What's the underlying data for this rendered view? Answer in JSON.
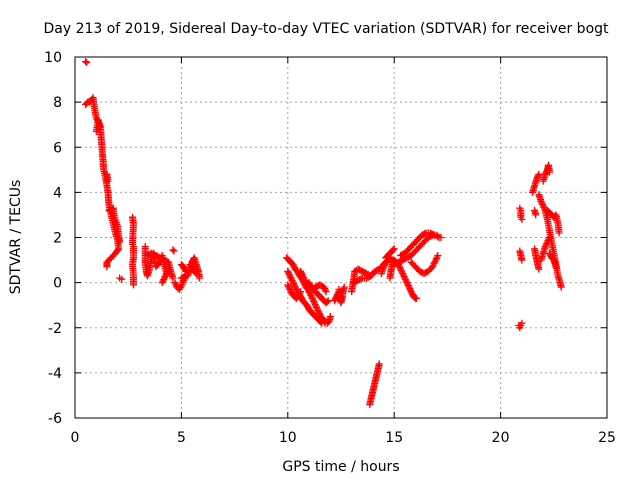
{
  "chart_data": {
    "type": "scatter",
    "title": "Day 213 of 2019, Sidereal Day-to-day VTEC variation (SDTVAR) for receiver bogt",
    "xlabel": "GPS time / hours",
    "ylabel": "SDTVAR / TECUs",
    "xlim": [
      0,
      25
    ],
    "ylim": [
      -6,
      10
    ],
    "xticks": [
      0,
      5,
      10,
      15,
      20,
      25
    ],
    "yticks": [
      -6,
      -4,
      -2,
      0,
      2,
      4,
      6,
      8,
      10
    ],
    "grid": true,
    "marker": "+",
    "color": "#ff0000",
    "segments": [
      [
        [
          0.5,
          9.8
        ],
        [
          0.55,
          9.75
        ]
      ],
      [
        [
          0.5,
          7.9
        ],
        [
          0.6,
          8.0
        ],
        [
          0.75,
          8.05
        ],
        [
          0.85,
          8.2
        ],
        [
          0.9,
          7.8
        ],
        [
          1.0,
          7.3
        ],
        [
          1.1,
          7.1
        ],
        [
          1.2,
          6.8
        ],
        [
          1.25,
          6.2
        ],
        [
          1.3,
          5.6
        ],
        [
          1.35,
          5.0
        ],
        [
          1.45,
          4.6
        ],
        [
          1.55,
          4.0
        ],
        [
          1.6,
          3.4
        ],
        [
          1.7,
          3.0
        ],
        [
          1.8,
          2.6
        ],
        [
          1.9,
          2.2
        ],
        [
          2.0,
          1.9
        ],
        [
          2.05,
          1.5
        ],
        [
          1.9,
          1.3
        ],
        [
          1.7,
          1.1
        ],
        [
          1.5,
          0.9
        ],
        [
          1.5,
          0.7
        ]
      ],
      [
        [
          1.0,
          6.7
        ],
        [
          1.1,
          7.2
        ],
        [
          1.2,
          6.9
        ]
      ],
      [
        [
          1.5,
          4.8
        ],
        [
          1.55,
          4.5
        ]
      ],
      [
        [
          1.6,
          3.2
        ],
        [
          1.8,
          3.3
        ],
        [
          1.85,
          2.9
        ],
        [
          2.0,
          2.5
        ],
        [
          2.05,
          2.1
        ],
        [
          2.1,
          1.8
        ]
      ],
      [
        [
          2.1,
          0.2
        ],
        [
          2.2,
          0.15
        ]
      ],
      [
        [
          2.7,
          2.9
        ],
        [
          2.75,
          2.6
        ],
        [
          2.7,
          1.7
        ],
        [
          2.75,
          1.6
        ],
        [
          2.75,
          1.1
        ],
        [
          2.7,
          0.8
        ],
        [
          2.75,
          0.3
        ],
        [
          2.75,
          -0.1
        ]
      ],
      [
        [
          3.3,
          1.6
        ],
        [
          3.3,
          0.9
        ],
        [
          3.35,
          0.5
        ],
        [
          3.4,
          0.3
        ],
        [
          3.5,
          0.6
        ],
        [
          3.6,
          1.1
        ],
        [
          3.7,
          1.3
        ],
        [
          3.8,
          0.7
        ],
        [
          4.0,
          0.9
        ],
        [
          4.1,
          1.2
        ],
        [
          4.2,
          0.8
        ],
        [
          4.3,
          0.4
        ],
        [
          4.4,
          0.6
        ],
        [
          4.2,
          0.2
        ],
        [
          4.1,
          0.0
        ]
      ],
      [
        [
          3.4,
          1.2
        ],
        [
          3.6,
          1.3
        ],
        [
          3.8,
          1.2
        ],
        [
          4.0,
          1.1
        ],
        [
          4.2,
          1.0
        ],
        [
          4.4,
          0.9
        ],
        [
          4.5,
          0.5
        ],
        [
          4.6,
          0.2
        ]
      ],
      [
        [
          4.6,
          1.45
        ],
        [
          4.65,
          1.4
        ]
      ],
      [
        [
          4.7,
          0.0
        ],
        [
          4.8,
          -0.2
        ],
        [
          4.9,
          -0.3
        ],
        [
          5.0,
          -0.15
        ],
        [
          5.1,
          0.1
        ],
        [
          5.2,
          0.3
        ],
        [
          5.0,
          0.2
        ]
      ],
      [
        [
          5.0,
          0.8
        ],
        [
          5.1,
          0.7
        ],
        [
          5.2,
          0.5
        ]
      ],
      [
        [
          5.3,
          0.3
        ],
        [
          5.4,
          0.6
        ],
        [
          5.5,
          0.9
        ],
        [
          5.6,
          1.1
        ],
        [
          5.7,
          0.8
        ],
        [
          5.8,
          0.5
        ],
        [
          5.85,
          0.2
        ]
      ],
      [
        [
          5.4,
          0.8
        ],
        [
          5.5,
          0.7
        ],
        [
          5.6,
          0.5
        ],
        [
          5.7,
          0.4
        ]
      ],
      [
        [
          9.95,
          1.1
        ],
        [
          10.05,
          1.0
        ],
        [
          10.15,
          0.9
        ],
        [
          10.25,
          0.8
        ],
        [
          10.35,
          0.6
        ],
        [
          10.45,
          0.5
        ],
        [
          10.55,
          0.3
        ],
        [
          10.65,
          0.2
        ],
        [
          10.75,
          0.0
        ],
        [
          10.85,
          -0.2
        ],
        [
          10.95,
          -0.3
        ],
        [
          11.05,
          -0.5
        ],
        [
          11.15,
          -0.7
        ],
        [
          11.25,
          -0.9
        ],
        [
          11.35,
          -1.1
        ],
        [
          11.45,
          -1.3
        ],
        [
          11.55,
          -1.5
        ],
        [
          11.65,
          -1.6
        ],
        [
          11.75,
          -1.8
        ],
        [
          11.85,
          -1.8
        ],
        [
          11.95,
          -1.7
        ],
        [
          12.0,
          -1.5
        ]
      ],
      [
        [
          10.0,
          0.5
        ],
        [
          10.1,
          0.3
        ],
        [
          10.2,
          0.1
        ],
        [
          10.3,
          -0.1
        ],
        [
          10.4,
          -0.3
        ],
        [
          10.5,
          -0.5
        ],
        [
          10.6,
          -0.6
        ],
        [
          10.7,
          -0.8
        ],
        [
          10.8,
          -0.9
        ],
        [
          10.9,
          -1.0
        ],
        [
          11.0,
          -1.2
        ],
        [
          11.1,
          -1.3
        ],
        [
          11.2,
          -1.4
        ],
        [
          11.3,
          -1.5
        ],
        [
          11.4,
          -1.6
        ],
        [
          11.5,
          -1.7
        ],
        [
          11.6,
          -1.8
        ]
      ],
      [
        [
          10.0,
          -0.1
        ],
        [
          10.1,
          -0.3
        ],
        [
          10.2,
          -0.5
        ],
        [
          10.3,
          -0.6
        ],
        [
          10.4,
          -0.7
        ],
        [
          10.5,
          -0.6
        ],
        [
          10.6,
          -0.4
        ]
      ],
      [
        [
          10.6,
          0.5
        ],
        [
          10.7,
          0.3
        ],
        [
          10.8,
          0.1
        ],
        [
          10.9,
          -0.1
        ],
        [
          11.0,
          0.0
        ],
        [
          11.1,
          -0.2
        ],
        [
          11.2,
          -0.3
        ],
        [
          11.3,
          -0.2
        ]
      ],
      [
        [
          11.3,
          -0.4
        ],
        [
          11.4,
          -0.5
        ],
        [
          11.5,
          -0.6
        ],
        [
          11.6,
          -0.7
        ],
        [
          11.7,
          -0.8
        ],
        [
          11.8,
          -0.9
        ],
        [
          11.9,
          -0.8
        ]
      ],
      [
        [
          11.3,
          -0.2
        ],
        [
          11.5,
          -0.1
        ],
        [
          11.7,
          -0.2
        ],
        [
          11.8,
          -0.4
        ]
      ],
      [
        [
          12.2,
          -0.8
        ],
        [
          12.3,
          -0.6
        ],
        [
          12.4,
          -0.4
        ]
      ],
      [
        [
          12.4,
          -0.3
        ],
        [
          12.45,
          -0.6
        ],
        [
          12.5,
          -0.9
        ],
        [
          12.55,
          -0.7
        ],
        [
          12.6,
          -0.4
        ],
        [
          12.65,
          -0.2
        ]
      ],
      [
        [
          13.0,
          -0.4
        ],
        [
          13.05,
          -0.1
        ],
        [
          13.1,
          0.2
        ],
        [
          13.15,
          0.5
        ],
        [
          13.3,
          0.6
        ],
        [
          13.5,
          0.5
        ],
        [
          13.7,
          0.4
        ],
        [
          13.9,
          0.3
        ],
        [
          14.1,
          0.5
        ],
        [
          14.3,
          0.6
        ],
        [
          14.5,
          0.8
        ],
        [
          14.6,
          0.9
        ]
      ],
      [
        [
          13.1,
          0.0
        ],
        [
          13.3,
          0.1
        ],
        [
          13.5,
          0.2
        ],
        [
          13.7,
          0.2
        ],
        [
          13.9,
          0.3
        ],
        [
          14.0,
          0.4
        ]
      ],
      [
        [
          13.85,
          -5.4
        ],
        [
          13.9,
          -5.2
        ],
        [
          13.95,
          -5.0
        ],
        [
          14.0,
          -4.8
        ],
        [
          14.05,
          -4.6
        ],
        [
          14.1,
          -4.4
        ],
        [
          14.15,
          -4.2
        ],
        [
          14.2,
          -4.0
        ],
        [
          14.25,
          -3.8
        ],
        [
          14.3,
          -3.6
        ]
      ],
      [
        [
          14.4,
          0.4
        ],
        [
          14.5,
          0.7
        ],
        [
          14.6,
          0.9
        ],
        [
          14.7,
          1.0
        ],
        [
          14.8,
          1.1
        ],
        [
          14.9,
          1.0
        ],
        [
          15.0,
          0.9
        ]
      ],
      [
        [
          14.6,
          1.1
        ],
        [
          14.7,
          1.2
        ],
        [
          14.8,
          1.3
        ],
        [
          14.9,
          1.4
        ],
        [
          15.0,
          1.5
        ]
      ],
      [
        [
          14.8,
          0.2
        ],
        [
          14.85,
          0.5
        ],
        [
          14.9,
          0.8
        ],
        [
          14.95,
          1.0
        ]
      ],
      [
        [
          15.0,
          1.0
        ],
        [
          15.1,
          0.9
        ],
        [
          15.2,
          0.8
        ],
        [
          15.3,
          0.6
        ],
        [
          15.4,
          0.4
        ],
        [
          15.5,
          0.2
        ],
        [
          15.6,
          0.0
        ],
        [
          15.7,
          -0.2
        ],
        [
          15.8,
          -0.4
        ],
        [
          15.9,
          -0.6
        ],
        [
          16.0,
          -0.7
        ],
        [
          16.05,
          -0.7
        ]
      ],
      [
        [
          15.0,
          0.8
        ],
        [
          15.2,
          0.9
        ],
        [
          15.4,
          1.0
        ],
        [
          15.6,
          1.1
        ],
        [
          15.8,
          1.2
        ],
        [
          16.0,
          1.4
        ],
        [
          16.2,
          1.6
        ],
        [
          16.4,
          1.8
        ],
        [
          16.6,
          2.0
        ],
        [
          16.8,
          2.1
        ],
        [
          17.0,
          2.1
        ],
        [
          17.1,
          2.0
        ],
        [
          17.2,
          2.0
        ]
      ],
      [
        [
          15.3,
          1.2
        ],
        [
          15.5,
          1.3
        ],
        [
          15.7,
          1.5
        ],
        [
          15.9,
          1.7
        ],
        [
          16.1,
          1.9
        ],
        [
          16.3,
          2.1
        ],
        [
          16.5,
          2.2
        ],
        [
          16.7,
          2.2
        ],
        [
          16.9,
          2.1
        ]
      ],
      [
        [
          15.8,
          0.9
        ],
        [
          16.0,
          0.7
        ],
        [
          16.2,
          0.5
        ],
        [
          16.4,
          0.4
        ],
        [
          16.6,
          0.5
        ],
        [
          16.8,
          0.7
        ],
        [
          16.95,
          1.0
        ],
        [
          17.05,
          1.2
        ]
      ],
      [
        [
          20.9,
          3.3
        ],
        [
          20.95,
          3.2
        ],
        [
          20.95,
          2.9
        ],
        [
          21.0,
          2.8
        ]
      ],
      [
        [
          20.9,
          1.4
        ],
        [
          20.95,
          1.2
        ],
        [
          21.0,
          1.0
        ]
      ],
      [
        [
          20.85,
          -1.9
        ],
        [
          20.9,
          -2.0
        ],
        [
          20.95,
          -1.9
        ],
        [
          21.0,
          -1.8
        ]
      ],
      [
        [
          21.5,
          4.0
        ],
        [
          21.6,
          4.3
        ],
        [
          21.7,
          4.6
        ],
        [
          21.8,
          4.8
        ]
      ],
      [
        [
          21.6,
          3.2
        ],
        [
          21.65,
          3.0
        ]
      ],
      [
        [
          21.6,
          1.5
        ],
        [
          21.65,
          1.2
        ],
        [
          21.7,
          1.0
        ],
        [
          21.75,
          0.8
        ],
        [
          21.8,
          0.6
        ]
      ],
      [
        [
          21.8,
          3.9
        ],
        [
          21.9,
          3.6
        ],
        [
          22.0,
          3.4
        ],
        [
          22.1,
          3.2
        ],
        [
          22.2,
          2.8
        ],
        [
          22.3,
          2.3
        ],
        [
          22.4,
          1.8
        ],
        [
          22.5,
          1.3
        ],
        [
          22.6,
          0.8
        ],
        [
          22.7,
          0.3
        ],
        [
          22.8,
          0.0
        ],
        [
          22.85,
          -0.2
        ]
      ],
      [
        [
          21.9,
          1.0
        ],
        [
          22.0,
          1.3
        ],
        [
          22.1,
          1.6
        ],
        [
          22.2,
          1.8
        ],
        [
          22.3,
          2.0
        ]
      ],
      [
        [
          22.0,
          4.5
        ],
        [
          22.1,
          4.8
        ],
        [
          22.2,
          5.0
        ],
        [
          22.25,
          5.2
        ],
        [
          22.3,
          4.9
        ]
      ],
      [
        [
          22.2,
          3.2
        ],
        [
          22.3,
          3.1
        ],
        [
          22.4,
          3.0
        ],
        [
          22.5,
          2.9
        ],
        [
          22.6,
          3.0
        ],
        [
          22.7,
          2.6
        ],
        [
          22.75,
          2.2
        ]
      ],
      [
        [
          22.3,
          1.3
        ],
        [
          22.4,
          1.1
        ],
        [
          22.5,
          1.0
        ],
        [
          22.6,
          0.7
        ]
      ]
    ]
  }
}
